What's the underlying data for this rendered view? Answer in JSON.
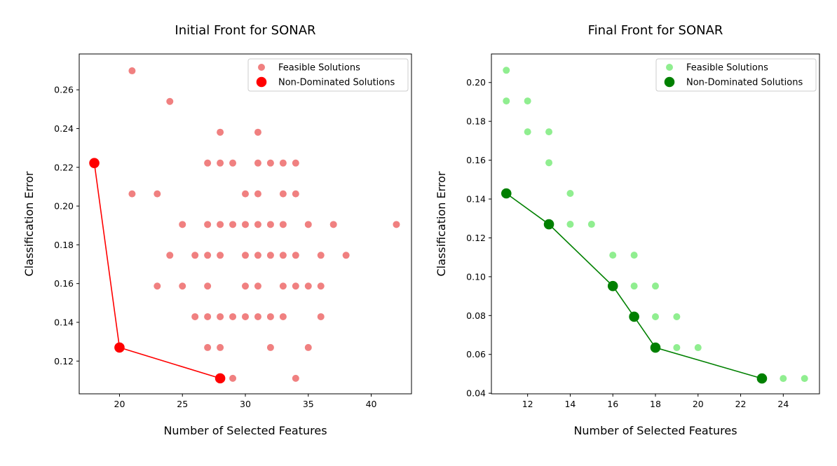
{
  "chart_data": [
    {
      "type": "scatter",
      "title": "Initial Front for SONAR",
      "xlabel": "Number of Selected Features",
      "ylabel": "Classification Error",
      "xlim": [
        16.8,
        43.2
      ],
      "ylim": [
        0.1031,
        0.2785
      ],
      "xticks": [
        20,
        25,
        30,
        35,
        40
      ],
      "yticks": [
        0.12,
        0.14,
        0.16,
        0.18,
        0.2,
        0.22,
        0.24,
        0.26
      ],
      "tick_decimals": 2,
      "legend_position": "upper right",
      "colors": {
        "feasible": "#f08080",
        "front": "#ff0000"
      },
      "series": [
        {
          "name": "Feasible Solutions",
          "kind": "scatter",
          "points": [
            [
              21,
              0.2698
            ],
            [
              24,
              0.254
            ],
            [
              28,
              0.2381
            ],
            [
              31,
              0.2381
            ],
            [
              27,
              0.2222
            ],
            [
              28,
              0.2222
            ],
            [
              29,
              0.2222
            ],
            [
              31,
              0.2222
            ],
            [
              32,
              0.2222
            ],
            [
              33,
              0.2222
            ],
            [
              34,
              0.2222
            ],
            [
              21,
              0.2063
            ],
            [
              23,
              0.2063
            ],
            [
              30,
              0.2063
            ],
            [
              31,
              0.2063
            ],
            [
              33,
              0.2063
            ],
            [
              34,
              0.2063
            ],
            [
              25,
              0.1905
            ],
            [
              27,
              0.1905
            ],
            [
              28,
              0.1905
            ],
            [
              29,
              0.1905
            ],
            [
              30,
              0.1905
            ],
            [
              31,
              0.1905
            ],
            [
              32,
              0.1905
            ],
            [
              33,
              0.1905
            ],
            [
              35,
              0.1905
            ],
            [
              37,
              0.1905
            ],
            [
              42,
              0.1905
            ],
            [
              24,
              0.1746
            ],
            [
              26,
              0.1746
            ],
            [
              27,
              0.1746
            ],
            [
              28,
              0.1746
            ],
            [
              30,
              0.1746
            ],
            [
              31,
              0.1746
            ],
            [
              32,
              0.1746
            ],
            [
              33,
              0.1746
            ],
            [
              34,
              0.1746
            ],
            [
              36,
              0.1746
            ],
            [
              38,
              0.1746
            ],
            [
              23,
              0.1587
            ],
            [
              25,
              0.1587
            ],
            [
              27,
              0.1587
            ],
            [
              30,
              0.1587
            ],
            [
              31,
              0.1587
            ],
            [
              33,
              0.1587
            ],
            [
              34,
              0.1587
            ],
            [
              35,
              0.1587
            ],
            [
              36,
              0.1587
            ],
            [
              26,
              0.1429
            ],
            [
              27,
              0.1429
            ],
            [
              28,
              0.1429
            ],
            [
              29,
              0.1429
            ],
            [
              30,
              0.1429
            ],
            [
              31,
              0.1429
            ],
            [
              32,
              0.1429
            ],
            [
              33,
              0.1429
            ],
            [
              36,
              0.1429
            ],
            [
              27,
              0.127
            ],
            [
              28,
              0.127
            ],
            [
              32,
              0.127
            ],
            [
              35,
              0.127
            ],
            [
              29,
              0.1111
            ],
            [
              34,
              0.1111
            ]
          ]
        },
        {
          "name": "Non-Dominated Solutions",
          "kind": "line+scatter",
          "points": [
            [
              18,
              0.2222
            ],
            [
              20,
              0.127
            ],
            [
              28,
              0.1111
            ]
          ]
        }
      ]
    },
    {
      "type": "scatter",
      "title": "Final Front for SONAR",
      "xlabel": "Number of Selected Features",
      "ylabel": "Classification Error",
      "xlim": [
        10.3,
        25.7
      ],
      "ylim": [
        0.0397,
        0.2147
      ],
      "xticks": [
        12,
        14,
        16,
        18,
        20,
        22,
        24
      ],
      "yticks": [
        0.04,
        0.06,
        0.08,
        0.1,
        0.12,
        0.14,
        0.16,
        0.18,
        0.2
      ],
      "tick_decimals": 2,
      "legend_position": "upper right",
      "colors": {
        "feasible": "#90ee90",
        "front": "#008000"
      },
      "series": [
        {
          "name": "Feasible Solutions",
          "kind": "scatter",
          "points": [
            [
              11,
              0.2063
            ],
            [
              11,
              0.1905
            ],
            [
              12,
              0.1905
            ],
            [
              12,
              0.1746
            ],
            [
              13,
              0.1746
            ],
            [
              13,
              0.1587
            ],
            [
              14,
              0.1429
            ],
            [
              14,
              0.127
            ],
            [
              15,
              0.127
            ],
            [
              16,
              0.1111
            ],
            [
              17,
              0.1111
            ],
            [
              17,
              0.0952
            ],
            [
              18,
              0.0952
            ],
            [
              18,
              0.0794
            ],
            [
              19,
              0.0794
            ],
            [
              19,
              0.0635
            ],
            [
              20,
              0.0635
            ],
            [
              24,
              0.0476
            ],
            [
              25,
              0.0476
            ]
          ]
        },
        {
          "name": "Non-Dominated Solutions",
          "kind": "line+scatter",
          "points": [
            [
              11,
              0.1429
            ],
            [
              13,
              0.127
            ],
            [
              16,
              0.0952
            ],
            [
              17,
              0.0794
            ],
            [
              18,
              0.0635
            ],
            [
              23,
              0.0476
            ]
          ]
        }
      ]
    }
  ]
}
